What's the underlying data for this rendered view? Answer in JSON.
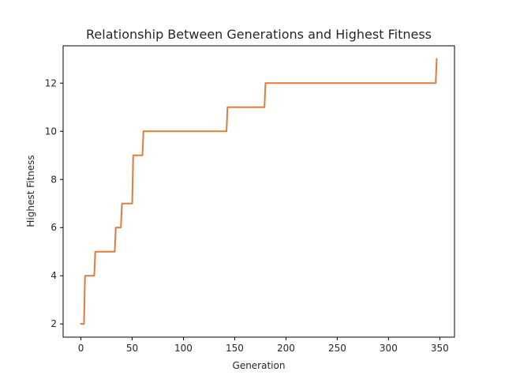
{
  "chart_data": {
    "type": "line",
    "title": "Relationship Between Generations and Highest Fitness",
    "xlabel": "Generation",
    "ylabel": "Highest Fitness",
    "xlim": [
      -17.35,
      364.35
    ],
    "ylim": [
      1.45,
      13.55
    ],
    "xticks": [
      0,
      50,
      100,
      150,
      200,
      250,
      300,
      350
    ],
    "yticks": [
      2,
      4,
      6,
      8,
      10,
      12
    ],
    "grid": false,
    "legend": "none",
    "colors": {
      "series": "#e07b39",
      "axis": "#000000",
      "text": "#262626"
    },
    "series": [
      {
        "x": [
          0,
          3,
          4,
          13,
          14,
          33,
          34,
          39,
          40,
          50,
          51,
          60,
          61,
          142,
          143,
          179,
          180,
          346,
          347
        ],
        "y": [
          2,
          2,
          4,
          4,
          5,
          5,
          6,
          6,
          7,
          7,
          9,
          9,
          10,
          10,
          11,
          11,
          12,
          12,
          13
        ]
      }
    ]
  }
}
